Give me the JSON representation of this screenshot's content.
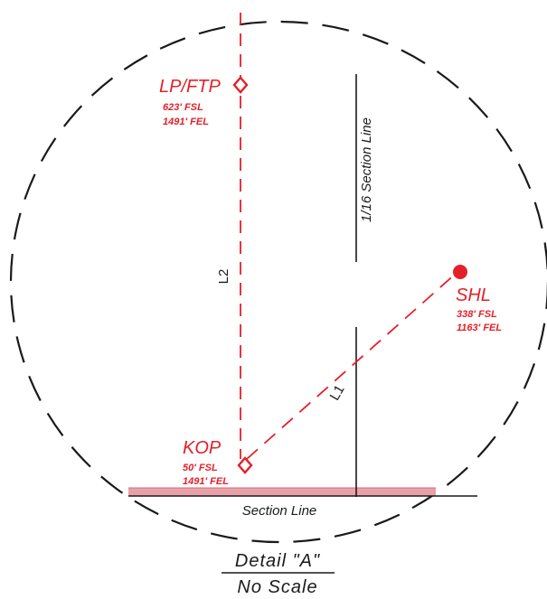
{
  "points": {
    "lp_ftp": {
      "name": "LP/FTP",
      "fsl": "623' FSL",
      "fel": "1491' FEL"
    },
    "shl": {
      "name": "SHL",
      "fsl": "338' FSL",
      "fel": "1163' FEL"
    },
    "kop": {
      "name": "KOP",
      "fsl": "50' FSL",
      "fel": "1491' FEL"
    }
  },
  "segments": {
    "l1": "L1",
    "l2": "L2"
  },
  "section_lines": {
    "vertical": "1/16 Section Line",
    "horizontal": "Section Line"
  },
  "detail": {
    "title": "Detail \"A\"",
    "scale": "No Scale"
  },
  "colors": {
    "well": "#e4202a",
    "lease_band": "#e9a0a8",
    "line": "#1a1a1a"
  }
}
